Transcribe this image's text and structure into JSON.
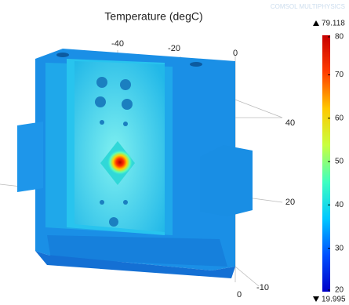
{
  "chart_data": {
    "type": "surface3d",
    "title": "Temperature (degC)",
    "watermark": "COMSOL MULTIPHYSICS",
    "xticks": [
      -40,
      -20,
      0
    ],
    "yticks": [
      40,
      20
    ],
    "zticks": [
      -10,
      0
    ],
    "colorbar": {
      "max": 79.118,
      "min": 19.995,
      "clim": [
        19.995,
        79.118
      ],
      "ticks": [
        20,
        30,
        40,
        50,
        60,
        70,
        80
      ],
      "colors": [
        "#0000c8",
        "#0050ff",
        "#00c8ff",
        "#40ffbf",
        "#c8ff40",
        "#ffc800",
        "#ff3c00",
        "#c80000"
      ]
    }
  }
}
